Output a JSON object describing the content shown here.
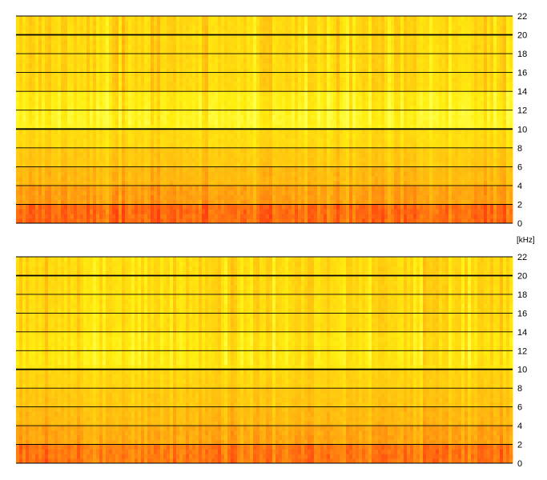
{
  "chart_data": [
    {
      "type": "heatmap",
      "name": "spectrogram-channel-1",
      "y_unit": "[kHz]",
      "ylim": [
        0,
        22
      ],
      "y_ticks": [
        "0",
        "2",
        "4",
        "6",
        "8",
        "10",
        "12",
        "14",
        "16",
        "18",
        "20",
        "22"
      ],
      "grid": true,
      "colormap": [
        "#ff2a00",
        "#ff7a00",
        "#ffb000",
        "#ffd000",
        "#ffee00",
        "#ffff40"
      ],
      "band_intensity": [
        {
          "from": 0,
          "to": 2,
          "level": 0.12
        },
        {
          "from": 2,
          "to": 4,
          "level": 0.3
        },
        {
          "from": 4,
          "to": 6,
          "level": 0.42
        },
        {
          "from": 6,
          "to": 8,
          "level": 0.52
        },
        {
          "from": 8,
          "to": 10,
          "level": 0.64
        },
        {
          "from": 10,
          "to": 12,
          "level": 0.85
        },
        {
          "from": 12,
          "to": 14,
          "level": 0.78
        },
        {
          "from": 14,
          "to": 22,
          "level": 0.62
        }
      ]
    },
    {
      "type": "heatmap",
      "name": "spectrogram-channel-2",
      "y_unit": "",
      "ylim": [
        0,
        22
      ],
      "y_ticks": [
        "0",
        "2",
        "4",
        "6",
        "8",
        "10",
        "12",
        "14",
        "16",
        "18",
        "20",
        "22"
      ],
      "grid": true,
      "colormap": [
        "#ff2a00",
        "#ff7a00",
        "#ffb000",
        "#ffd000",
        "#ffee00",
        "#ffff40"
      ],
      "band_intensity": [
        {
          "from": 0,
          "to": 2,
          "level": 0.15
        },
        {
          "from": 2,
          "to": 4,
          "level": 0.32
        },
        {
          "from": 4,
          "to": 6,
          "level": 0.42
        },
        {
          "from": 6,
          "to": 8,
          "level": 0.5
        },
        {
          "from": 8,
          "to": 10,
          "level": 0.58
        },
        {
          "from": 10,
          "to": 12,
          "level": 0.72
        },
        {
          "from": 12,
          "to": 14,
          "level": 0.7
        },
        {
          "from": 14,
          "to": 22,
          "level": 0.62
        }
      ]
    }
  ]
}
